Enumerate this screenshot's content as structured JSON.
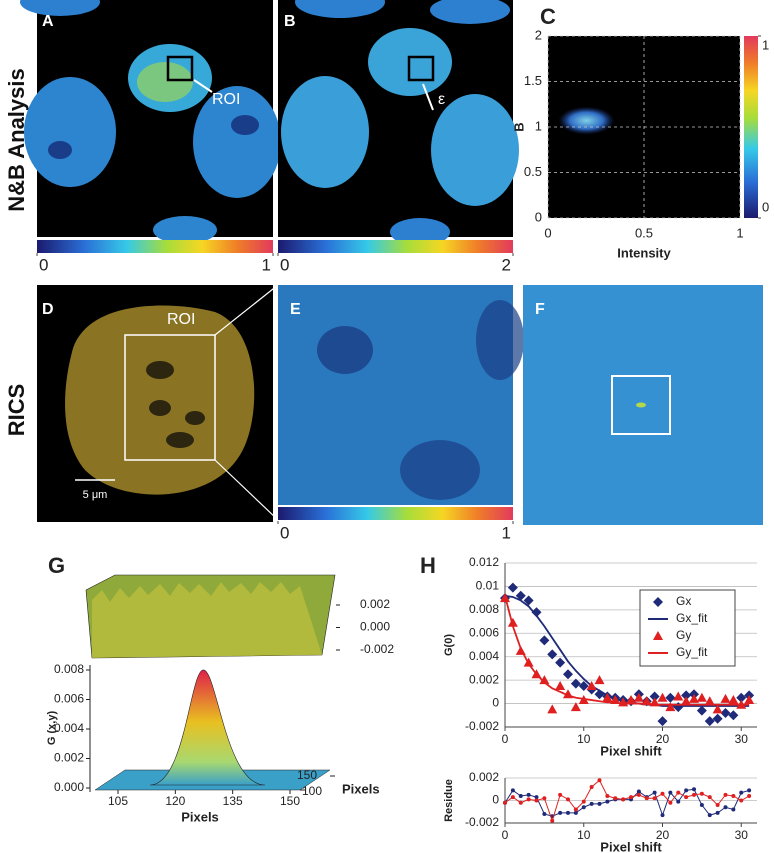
{
  "panel_labels": [
    "A",
    "B",
    "C",
    "D",
    "E",
    "F",
    "G",
    "H"
  ],
  "row_labels": [
    "N&B Analysis",
    "RICS"
  ],
  "annotations": [
    "ROI",
    "ε",
    "ROI",
    "5 μm"
  ],
  "colorbars": [
    {
      "ticks": [
        0,
        1
      ]
    },
    {
      "ticks": [
        0,
        2
      ]
    },
    {
      "ticks": [
        0,
        1
      ]
    }
  ],
  "chart_data": [
    {
      "type": "density",
      "xlabel": "Intensity",
      "ylabel": "B",
      "xlim": [
        0,
        1
      ],
      "ylim": [
        0,
        2
      ],
      "xticks": [
        0,
        0.5,
        1
      ],
      "yticks": [
        0,
        0.5,
        1,
        1.5,
        2
      ],
      "grid": true,
      "colorbar_ticks": [
        0,
        1
      ]
    },
    {
      "type": "surface",
      "zlabel": "G (x,y)",
      "xlabel": "Pixels",
      "ylabel": "Pixels",
      "zticks": [
        {
          "value": 0,
          "label": "0.000"
        },
        0.002,
        0.004,
        0.006,
        0.008
      ],
      "xticks": [
        105,
        120,
        135,
        150
      ],
      "yticks": [
        100,
        150
      ],
      "residue_ticks": [
        0.002,
        {
          "value": 0,
          "label": "0.000"
        },
        -0.002
      ]
    },
    {
      "type": "line",
      "xlabel": "Pixel shift",
      "ylabel": "G(0)",
      "xlim": [
        0,
        32
      ],
      "ylim": [
        -0.002,
        0.012
      ],
      "xticks": [
        0,
        10,
        20,
        30
      ],
      "yticks": [
        -0.002,
        0,
        0.002,
        0.004,
        0.006,
        0.008,
        0.01,
        0.012
      ],
      "grid": true,
      "legend": "upper-right",
      "x": [
        0,
        1,
        2,
        3,
        4,
        5,
        6,
        7,
        8,
        9,
        10,
        11,
        12,
        13,
        14,
        15,
        16,
        17,
        18,
        19,
        20,
        21,
        22,
        23,
        24,
        25,
        26,
        27,
        28,
        29,
        30,
        31
      ],
      "series": [
        {
          "name": "Gx",
          "color": "#1f2a78",
          "marker": "diamond",
          "values": [
            0.009,
            0.0099,
            0.0092,
            0.0088,
            0.0078,
            0.0054,
            0.0042,
            0.0035,
            0.0025,
            0.0017,
            0.0015,
            0.0012,
            0.0008,
            0.0006,
            0.0005,
            0.0003,
            0.0002,
            0.0008,
            0.0002,
            0.0006,
            -0.0015,
            0.0005,
            -0.0003,
            0.0007,
            0.0008,
            -0.0006,
            -0.0015,
            -0.0013,
            -0.0008,
            -0.001,
            0.0005,
            0.0007
          ]
        },
        {
          "name": "Gx_fit",
          "color": "#1f2a78",
          "marker": "none",
          "values": [
            0.0092,
            0.0091,
            0.0088,
            0.0083,
            0.0075,
            0.0066,
            0.0056,
            0.0046,
            0.0036,
            0.0028,
            0.0021,
            0.0015,
            0.0011,
            0.0007,
            0.0004,
            0.0002,
            0.0001,
            0,
            -0.0001,
            -0.0001,
            -0.0002,
            -0.0002,
            -0.0002,
            -0.0002,
            -0.0002,
            -0.0002,
            -0.0002,
            -0.0002,
            -0.0002,
            -0.0002,
            -0.0002,
            -0.0002
          ]
        },
        {
          "name": "Gy",
          "color": "#e02020",
          "marker": "triangle",
          "values": [
            0.009,
            0.0069,
            0.0045,
            0.0035,
            0.0025,
            0.002,
            -0.0005,
            0.0015,
            0.0008,
            -0.0003,
            0.0003,
            0.0015,
            0.002,
            0.0005,
            0.0003,
            0.0001,
            0.0003,
            0.0005,
            0.0002,
            0.0001,
            0.0005,
            -0.0003,
            0.0006,
            0.0002,
            0.0004,
            0.0005,
            0.0002,
            -0.0005,
            0.0004,
            0.0003,
            -0.0001,
            0.0003
          ]
        },
        {
          "name": "Gy_fit",
          "color": "#e02020",
          "marker": "none",
          "values": [
            0.0092,
            0.0066,
            0.0047,
            0.0034,
            0.0025,
            0.0018,
            0.0013,
            0.001,
            0.0007,
            0.0005,
            0.0004,
            0.0003,
            0.0002,
            0.0001,
            0.0001,
            0,
            0,
            0,
            0,
            -0.0001,
            -0.0001,
            -0.0001,
            -0.0001,
            -0.0001,
            -0.0001,
            -0.0001,
            -0.0001,
            -0.0001,
            -0.0001,
            -0.0001,
            -0.0001,
            -0.0001
          ]
        }
      ]
    },
    {
      "type": "line",
      "xlabel": "Pixel shift",
      "ylabel": "Residue",
      "xlim": [
        0,
        32
      ],
      "ylim": [
        -0.002,
        0.002
      ],
      "xticks": [
        0,
        10,
        20,
        30
      ],
      "yticks": [
        -0.002,
        0,
        0.002
      ],
      "grid": true,
      "x": [
        0,
        1,
        2,
        3,
        4,
        5,
        6,
        7,
        8,
        9,
        10,
        11,
        12,
        13,
        14,
        15,
        16,
        17,
        18,
        19,
        20,
        21,
        22,
        23,
        24,
        25,
        26,
        27,
        28,
        29,
        30,
        31
      ],
      "series": [
        {
          "color": "#1f2a78",
          "marker": "dot",
          "values": [
            -0.0002,
            0.0009,
            0.0004,
            0.0005,
            0.0003,
            -0.0012,
            -0.0014,
            -0.0011,
            -0.0011,
            -0.0011,
            -0.0006,
            -0.0003,
            -0.0003,
            -0.0001,
            0.0001,
            0.0001,
            0.0001,
            0.0008,
            0.0003,
            0.0007,
            -0.0013,
            0.0007,
            -0.0001,
            0.0009,
            0.001,
            -0.0004,
            -0.0013,
            -0.0011,
            -0.0006,
            -0.0008,
            0.0007,
            0.0009
          ]
        },
        {
          "color": "#e02020",
          "marker": "dot",
          "values": [
            -0.0002,
            0.0003,
            -0.0002,
            0.0001,
            0,
            0.0002,
            -0.0018,
            0.0005,
            0.0001,
            -0.0008,
            -0.0001,
            0.0012,
            0.0018,
            0.0004,
            0.0002,
            0.0001,
            0.0003,
            0.0005,
            0.0002,
            0.0002,
            0.0006,
            -0.0002,
            0.0007,
            0.0003,
            0.0005,
            0.0006,
            0.0003,
            -0.0004,
            0.0005,
            0.0004,
            0,
            0.0004
          ]
        }
      ]
    }
  ]
}
